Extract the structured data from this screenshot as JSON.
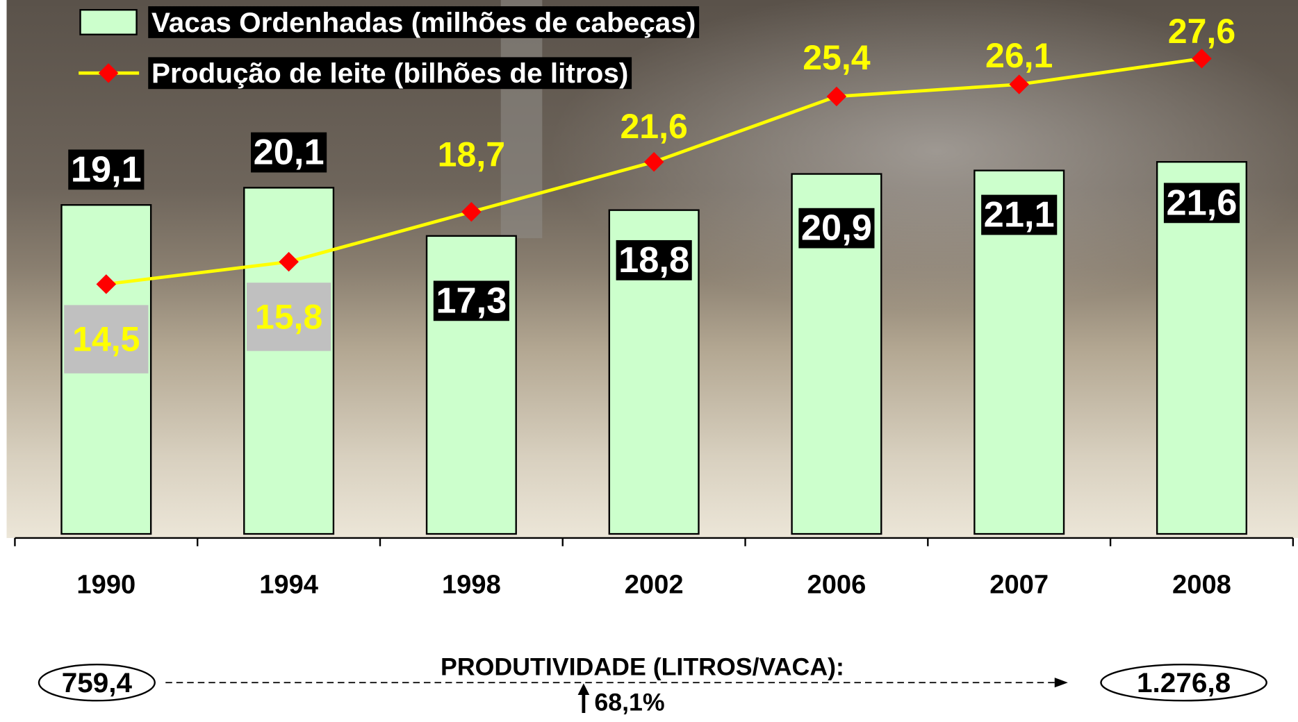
{
  "chart_data": {
    "type": "bar",
    "categories": [
      "1990",
      "1994",
      "1998",
      "2002",
      "2006",
      "2007",
      "2008"
    ],
    "series": [
      {
        "name": "Vacas Ordenhadas (milhões de cabeças)",
        "type": "bar",
        "color": "#ccffcc",
        "values": [
          19.1,
          20.1,
          17.3,
          18.8,
          20.9,
          21.1,
          21.6
        ],
        "value_labels": [
          "19,1",
          "20,1",
          "17,3",
          "18,8",
          "20,9",
          "21,1",
          "21,6"
        ]
      },
      {
        "name": "Produção de leite (bilhões de litros)",
        "type": "line",
        "color": "#ffff00",
        "marker_color": "#ff0000",
        "values": [
          14.5,
          15.8,
          18.7,
          21.6,
          25.4,
          26.1,
          27.6
        ],
        "value_labels": [
          "14,5",
          "15,8",
          "18,7",
          "21,6",
          "25,4",
          "26,1",
          "27,6"
        ]
      }
    ],
    "ylim": [
      0,
      31
    ],
    "legend": "top-left",
    "annotations": {
      "label": "PRODUTIVIDADE (LITROS/VACA):",
      "start": "759,4",
      "end": "1.276,8",
      "change": "68,1%"
    }
  }
}
